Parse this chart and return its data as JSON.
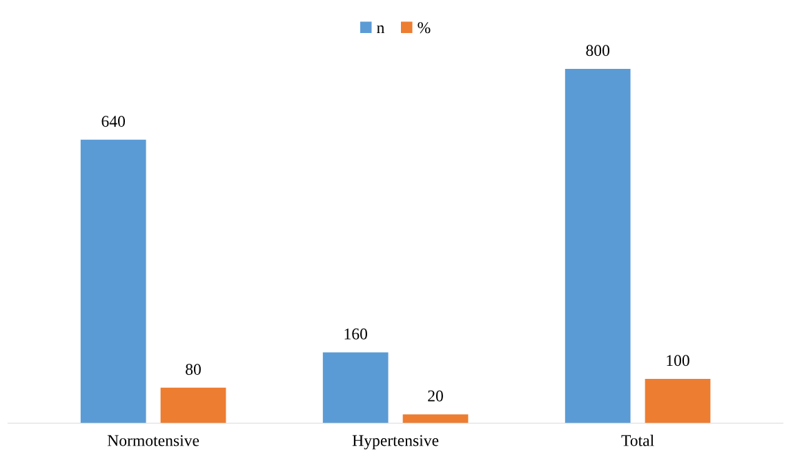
{
  "chart_data": {
    "type": "bar",
    "categories": [
      "Normotensive",
      "Hypertensive",
      "Total"
    ],
    "series": [
      {
        "name": "n",
        "color": "#5b9bd5",
        "values": [
          640,
          160,
          800
        ]
      },
      {
        "name": "%",
        "color": "#ed7d31",
        "values": [
          80,
          20,
          100
        ]
      }
    ],
    "data_labels": true,
    "legend": "top",
    "grid": false,
    "tick_labels": "x"
  }
}
